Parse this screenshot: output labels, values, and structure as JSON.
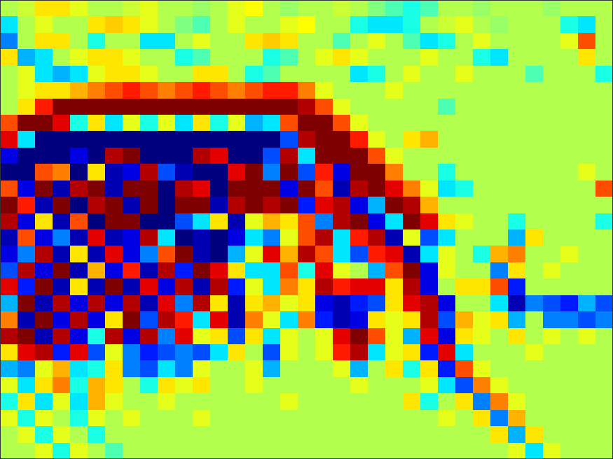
{
  "chart_data": {
    "type": "heatmap",
    "tick_labels": false,
    "zlim": [
      -1,
      1
    ],
    "cells": [
      [
        0.1,
        0.15,
        0.3,
        0.3,
        0.2,
        0.1,
        0.1,
        0.15,
        0.2,
        0.1,
        0.1,
        0.05,
        0.1,
        0.2,
        0.25,
        0.1,
        0.05,
        0.1,
        0.1,
        0.15,
        0.1,
        0,
        -0.1,
        -0.2,
        -0.1,
        0.1,
        0.1,
        0.05,
        0.1,
        0.1,
        0.1,
        0.05,
        0.1,
        0.1,
        0.1
      ],
      [
        -0.3,
        0.1,
        0.2,
        0.1,
        0.1,
        0.3,
        0.35,
        0.3,
        0.2,
        0.1,
        0,
        -0.1,
        0.1,
        0.2,
        0.1,
        0.1,
        0.2,
        0.25,
        0.1,
        0.1,
        -0.2,
        -0.3,
        -0.3,
        -0.2,
        0.1,
        0.15,
        0.2,
        0.1,
        0.05,
        0.1,
        0.1,
        0.1,
        -0.2,
        -0.3,
        0.1
      ],
      [
        -0.5,
        0.1,
        0.3,
        0.3,
        0.1,
        -0.2,
        0.1,
        0.1,
        -0.3,
        -0.3,
        0.1,
        0.2,
        0.1,
        0.1,
        0.3,
        0.35,
        0.3,
        0.1,
        0.1,
        -0.1,
        0.1,
        0.2,
        0.1,
        -0.1,
        -0.3,
        -0.2,
        0.1,
        0.2,
        0.1,
        0.1,
        0.1,
        0.1,
        0.2,
        0.6,
        0.1
      ],
      [
        0.3,
        -0.4,
        -0.3,
        0.1,
        0.2,
        0.3,
        0.3,
        0.2,
        0.1,
        0.1,
        -0.2,
        -0.1,
        0.1,
        0.1,
        0.1,
        -0.2,
        -0.1,
        0.1,
        0.2,
        0.3,
        0.2,
        0.1,
        0.1,
        0.1,
        0.2,
        0.1,
        0.1,
        -0.2,
        -0.3,
        0.1,
        0.1,
        0.1,
        0.1,
        0.3,
        0.1
      ],
      [
        0.1,
        0.2,
        -0.3,
        -0.4,
        -0.3,
        0.2,
        0.3,
        0.3,
        0.2,
        0.1,
        0.1,
        0.3,
        0.3,
        0.1,
        -0.2,
        -0.1,
        0.1,
        0.1,
        0.1,
        0.1,
        -0.3,
        -0.2,
        0.1,
        0.2,
        0.1,
        0.1,
        0.2,
        0.1,
        0.1,
        0.1,
        -0.1,
        0.1,
        0.1,
        0.1,
        -0.2
      ],
      [
        0.1,
        0.2,
        0.3,
        0.3,
        0.4,
        0.5,
        0.6,
        0.7,
        0.6,
        0.5,
        0.6,
        0.7,
        0.6,
        0.5,
        0.6,
        0.7,
        0.7,
        0.5,
        0.2,
        0.1,
        0.1,
        0.1,
        0.2,
        0.1,
        0.1,
        0.1,
        0.1,
        0.1,
        0.1,
        0.1,
        0.1,
        0.1,
        0.1,
        0.1,
        0.1
      ],
      [
        0.1,
        0.3,
        0.7,
        1,
        1,
        1,
        1,
        1,
        1,
        1,
        1,
        1,
        1,
        1,
        1,
        1,
        1,
        0.9,
        0.6,
        0.2,
        0.1,
        0.1,
        0.1,
        0.1,
        0.1,
        -0.1,
        0.1,
        0.1,
        0.1,
        0.1,
        0.1,
        0.1,
        0.1,
        0.1,
        0.1
      ],
      [
        0.6,
        1,
        1,
        0.8,
        -0.2,
        0.3,
        -0.3,
        0.2,
        -0.2,
        0.2,
        -0.3,
        0.3,
        -0.2,
        0.2,
        -0.4,
        -0.3,
        0.6,
        1,
        1,
        0.6,
        0.2,
        0.1,
        0.1,
        0.1,
        0.1,
        0.1,
        0.1,
        0.1,
        0.1,
        0.1,
        0.1,
        0.1,
        0.1,
        0.1,
        0.1
      ],
      [
        0.8,
        -0.3,
        -1,
        -1,
        -1,
        -1,
        -1,
        -1,
        -1,
        -1,
        -1,
        -1,
        -1,
        -1,
        -1,
        -1,
        -0.6,
        0.9,
        1,
        1,
        0.7,
        0.2,
        0.1,
        0.3,
        0.4,
        0.1,
        0.1,
        0.1,
        0.1,
        0.1,
        0.1,
        0.1,
        0.1,
        0.1,
        0.1
      ],
      [
        -0.8,
        -1,
        -1,
        -1,
        -0.8,
        -1,
        0.9,
        1,
        -1,
        -1,
        -1,
        0.9,
        0.8,
        -1,
        -1,
        -0.6,
        0.9,
        -0.3,
        1,
        1,
        1,
        0.6,
        0.2,
        0.1,
        0.1,
        0.1,
        0.1,
        0.1,
        0.1,
        0.1,
        0.1,
        0.1,
        0.1,
        0.1,
        0.1
      ],
      [
        -1,
        -1,
        0.6,
        0.5,
        -1,
        0.3,
        -0.9,
        -0.8,
        0.9,
        -0.6,
        -0.9,
        -1,
        -1,
        0.8,
        1,
        -0.5,
        1,
        -0.6,
        0.7,
        -0.8,
        1,
        1,
        0.5,
        0.1,
        0.1,
        -0.2,
        0.1,
        0.1,
        0.1,
        0.1,
        0.1,
        0.1,
        0.1,
        0.2,
        0.1
      ],
      [
        0.6,
        -0.8,
        1,
        -0.9,
        0.9,
        1,
        -0.9,
        1,
        1,
        -1,
        0.9,
        0.8,
        -1,
        1,
        1,
        1,
        -0.8,
        1,
        0.6,
        -0.9,
        0.9,
        1,
        0.8,
        0.5,
        0.2,
        -0.3,
        -0.2,
        0.1,
        0.1,
        0.1,
        0.1,
        0.1,
        0.1,
        0.1,
        0.6
      ],
      [
        1,
        0.7,
        -0.9,
        1,
        -1,
        0.9,
        1,
        -0.9,
        1,
        -1,
        1,
        1,
        -0.9,
        0.9,
        1,
        0.9,
        1,
        -0.7,
        0.8,
        0.9,
        -0.8,
        -0.4,
        1,
        0.9,
        0.4,
        0.1,
        0.1,
        0.1,
        0.1,
        0.1,
        0.1,
        0.1,
        0.1,
        0.1,
        0.1
      ],
      [
        0.9,
        -0.8,
        0.3,
        -0.9,
        0.6,
        -1,
        1,
        1,
        -1,
        -1,
        -0.6,
        -0.3,
        0.3,
        -0.9,
        0.2,
        0.4,
        0.3,
        0.6,
        -0.5,
        0.9,
        1,
        -0.8,
        -0.3,
        1,
        0.8,
        0.3,
        0.2,
        0.1,
        0.1,
        -0.2,
        0.1,
        0.1,
        0.1,
        0.1,
        -0.2
      ],
      [
        -0.9,
        0.6,
        -0.8,
        -0.5,
        -0.9,
        0.8,
        -0.9,
        -0.8,
        0.9,
        -0.3,
        -1,
        -0.9,
        -1,
        -0.8,
        -0.3,
        -0.5,
        0.2,
        0.6,
        0.9,
        -0.3,
        0.7,
        0.9,
        -0.9,
        0.2,
        -0.6,
        -0.3,
        0.1,
        0.1,
        0.1,
        -0.4,
        0.3,
        0.1,
        0.1,
        0.1,
        0.1
      ],
      [
        -0.8,
        -0.5,
        0.9,
        -0.9,
        0.3,
        -0.9,
        0.8,
        -0.8,
        -0.5,
        0.6,
        1,
        -0.9,
        -1,
        -0.4,
        0.2,
        0.8,
        0.4,
        0.9,
        0.6,
        -0.3,
        -0.6,
        0.7,
        0.8,
        -0.9,
        -0.3,
        0.2,
        0.1,
        -0.2,
        0.4,
        0.5,
        0.1,
        0.1,
        0.2,
        0.1,
        0.1
      ],
      [
        -0.6,
        0.9,
        -0.8,
        1,
        -0.9,
        0.4,
        -0.8,
        0.7,
        -0.9,
        0.9,
        -0.7,
        1,
        0.8,
        0.3,
        -0.3,
        -0.3,
        0.6,
        -0.2,
        0.8,
        0.2,
        0.1,
        -0.4,
        0.6,
        1,
        -0.8,
        0.2,
        0.1,
        0.1,
        -0.5,
        0.3,
        0.1,
        0.2,
        0.1,
        0.1,
        0.1
      ],
      [
        0.8,
        -0.7,
        1,
        -0.9,
        0.3,
        -0.9,
        1,
        -0.9,
        0.8,
        -0.8,
        0.9,
        -0.9,
        0.9,
        -0.7,
        0.2,
        -0.3,
        0.5,
        0.3,
        0.9,
        0.7,
        0.8,
        0.8,
        0.3,
        0.9,
        -0.8,
        0.1,
        0.3,
        0.3,
        0.6,
        -0.7,
        0.1,
        0.1,
        0.1,
        0.1,
        0.1
      ],
      [
        -0.4,
        1,
        -0.9,
        0.9,
        -0.8,
        0.9,
        -0.8,
        0.9,
        -0.9,
        0.8,
        -0.5,
        0.9,
        0.3,
        -0.9,
        0.3,
        0.4,
        0.2,
        0.3,
        -0.8,
        -0.9,
        -0.7,
        -0.6,
        0.3,
        0.8,
        0.9,
        -0.8,
        0.1,
        0.1,
        -0.3,
        -0.9,
        -0.5,
        -0.6,
        -0.7,
        -0.4,
        -0.6
      ],
      [
        0.5,
        -0.9,
        1,
        -0.8,
        0.9,
        -0.8,
        0.3,
        1,
        -0.6,
        0.9,
        0.7,
        -0.3,
        0.8,
        -0.9,
        0.5,
        0.2,
        -0.3,
        0.5,
        -0.7,
        -0.9,
        -0.8,
        0.3,
        0.2,
        0.3,
        0.9,
        -0.6,
        0.4,
        0.2,
        0.3,
        -0.4,
        0.1,
        -0.5,
        -0.5,
        -0.6,
        -0.5
      ],
      [
        0.9,
        1,
        -0.9,
        0.9,
        -0.8,
        -0.2,
        0.9,
        -0.8,
        0.9,
        -0.5,
        0.8,
        0.2,
        0.3,
        -0.6,
        0.3,
        -0.3,
        0.2,
        0.1,
        0.2,
        0.8,
        1,
        0.6,
        0.2,
        -0.4,
        0.8,
        -0.8,
        0.3,
        0.2,
        0.1,
        0.3,
        0.1,
        0.2,
        0.1,
        0.2,
        0.1
      ],
      [
        0.3,
        0.8,
        0.9,
        -0.7,
        0.8,
        -0.6,
        0.2,
        -0.5,
        -0.7,
        -0.6,
        -0.5,
        -0.6,
        -0.3,
        0.3,
        0.1,
        -0.6,
        0.2,
        0.1,
        0.2,
        0.7,
        0.9,
        -0.3,
        0.2,
        0.3,
        -0.7,
        0.8,
        -0.3,
        0.1,
        0.1,
        0.1,
        0.2,
        0.1,
        0.1,
        0.1,
        0.1
      ],
      [
        -0.4,
        -0.5,
        0.2,
        0.4,
        -0.3,
        -0.2,
        0.3,
        -0.5,
        -0.6,
        -0.3,
        -0.5,
        0.2,
        0.1,
        0.1,
        0.2,
        -0.4,
        0.1,
        0.1,
        0.1,
        0.2,
        -0.4,
        0.1,
        0.3,
        -0.2,
        0.3,
        -0.7,
        0.6,
        0.2,
        0.1,
        0.1,
        0.1,
        0.1,
        0.1,
        0.1,
        0.1
      ],
      [
        0.2,
        -0.3,
        0.3,
        0.5,
        -0.2,
        0.4,
        0.3,
        0.1,
        -0.2,
        0.3,
        0.2,
        0.3,
        0.1,
        0.1,
        0.2,
        0.1,
        0.1,
        0.1,
        0.1,
        0.1,
        0.2,
        0.1,
        0.1,
        0.1,
        0.2,
        -0.3,
        -0.6,
        0.5,
        0.2,
        0.1,
        0.1,
        0.1,
        0.1,
        0.1,
        0.1
      ],
      [
        -0.2,
        0.3,
        -0.3,
        0.2,
        -0.3,
        0.4,
        0.2,
        0.1,
        0.1,
        0.2,
        0.1,
        0.1,
        0.1,
        0.1,
        0.1,
        0.1,
        0.2,
        0.1,
        0.1,
        0.1,
        0.1,
        0.1,
        0.1,
        0.3,
        -0.2,
        0.1,
        0.3,
        -0.5,
        0.5,
        0.2,
        0.1,
        0.1,
        0.1,
        0.1,
        0.1
      ],
      [
        0.2,
        -0.2,
        0.2,
        0.1,
        -0.2,
        0.2,
        0.1,
        0.2,
        0.1,
        0.1,
        0.1,
        0.2,
        0.1,
        0.1,
        0.1,
        0.1,
        0.1,
        0.1,
        0.1,
        0.1,
        0.1,
        0.1,
        0.1,
        0.1,
        0.1,
        0.2,
        0.1,
        0.3,
        -0.5,
        0.4,
        0.1,
        0.1,
        0.1,
        0.1,
        0.1
      ],
      [
        0.1,
        0.2,
        -0.2,
        0.2,
        0.1,
        -0.2,
        0.1,
        0.1,
        0.1,
        0.1,
        0.1,
        0.1,
        0.1,
        0.1,
        0.1,
        0.1,
        0.1,
        0.1,
        0.1,
        0.1,
        0.1,
        0.1,
        0.1,
        0.1,
        0.1,
        0.1,
        0.1,
        0.1,
        0.3,
        -0.4,
        0.3,
        0.1,
        0.1,
        0.1,
        0.1
      ],
      [
        0.1,
        0.1,
        0.2,
        -0.2,
        0.2,
        0.1,
        -0.1,
        0.1,
        0.1,
        0.1,
        0.1,
        0.1,
        0.1,
        0.1,
        0.1,
        0.1,
        0.1,
        0.1,
        0.1,
        0.1,
        0.1,
        0.1,
        0.1,
        0.1,
        0.1,
        0.1,
        0.1,
        0.1,
        0.1,
        0.2,
        -0.3,
        0.2,
        0.1,
        0.1,
        0.1
      ]
    ]
  }
}
